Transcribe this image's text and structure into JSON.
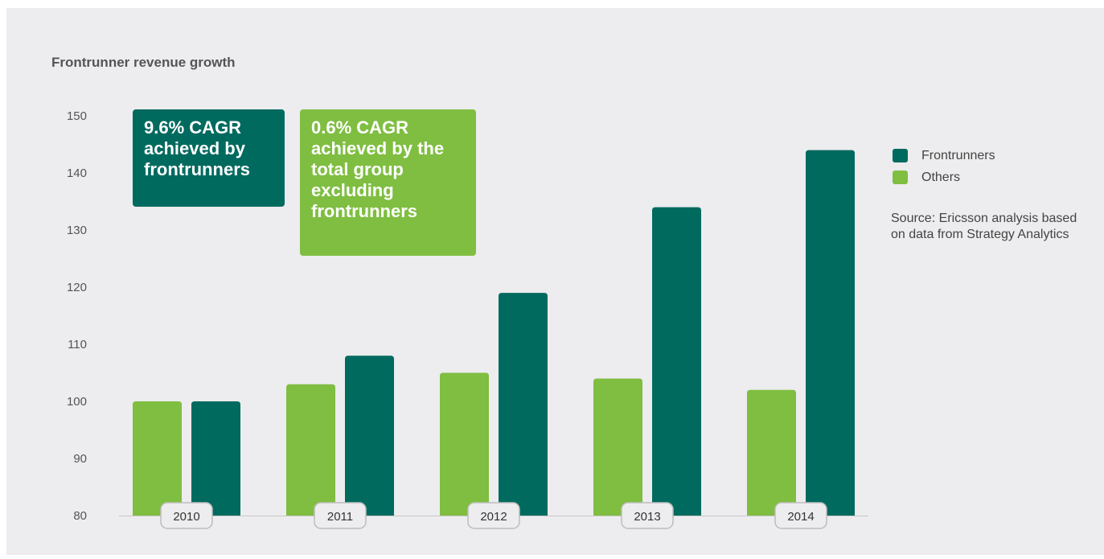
{
  "colors": {
    "frontrunners": "#006a5f",
    "others": "#7fbe41",
    "panel_background": "#edecee",
    "axis": "#c8c8c8"
  },
  "callouts": [
    {
      "text": "9.6% CAGR achieved by frontrunners",
      "series": "Frontrunners"
    },
    {
      "text": "0.6% CAGR achieved by the total group excluding frontrunners",
      "series": "Others"
    }
  ],
  "source": "Source: Ericsson analysis based on data from Strategy Analytics",
  "chart_data": {
    "type": "bar",
    "title": "Frontrunner revenue growth",
    "xlabel": "",
    "ylabel": "",
    "categories": [
      "2010",
      "2011",
      "2012",
      "2013",
      "2014"
    ],
    "series": [
      {
        "name": "Others",
        "values": [
          100,
          103,
          105,
          104,
          102
        ]
      },
      {
        "name": "Frontrunners",
        "values": [
          100,
          108,
          119,
          134,
          144
        ]
      }
    ],
    "ylim": [
      80,
      150
    ],
    "yticks": [
      80,
      90,
      100,
      110,
      120,
      130,
      140,
      150
    ],
    "legend_position": "right",
    "grid": false
  }
}
